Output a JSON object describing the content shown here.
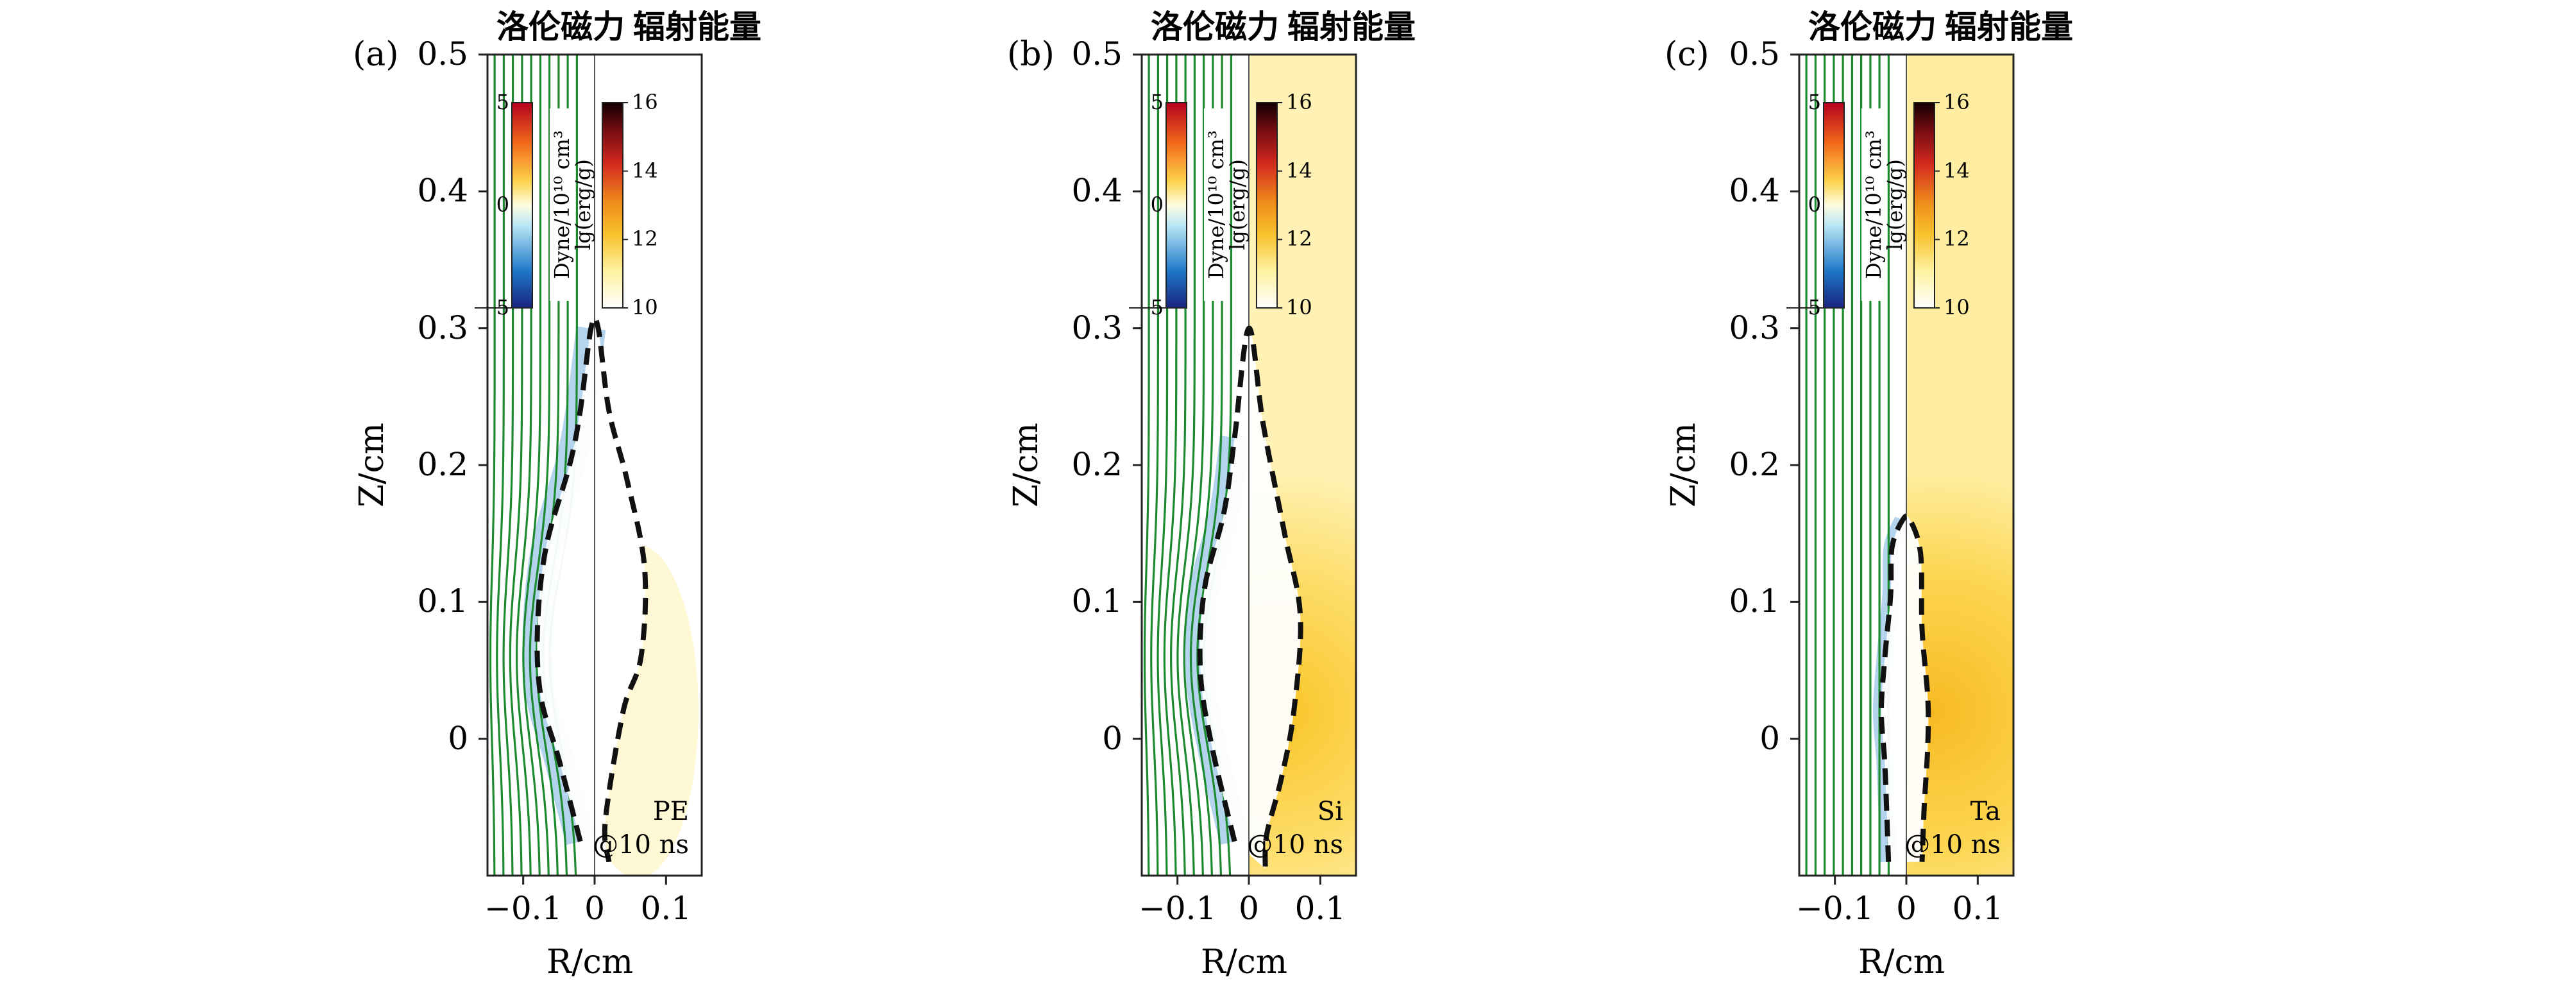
{
  "chart_data": {
    "type": "heatmap",
    "shared": {
      "left_half_title": "洛伦磁力",
      "right_half_title": "辐射能量",
      "xlabel": "R/cm",
      "ylabel": "Z/cm",
      "xlim": [
        -0.15,
        0.15
      ],
      "ylim": [
        -0.1,
        0.5
      ],
      "x_ticks": [
        "−0.1",
        "0",
        "0.1"
      ],
      "y_ticks": [
        "0",
        "0.1",
        "0.2",
        "0.3",
        "0.4",
        "0.5"
      ],
      "lorentz_colorbar": {
        "label": "Dyne/10¹⁰ cm³",
        "min": -5,
        "max": 5,
        "ticks": [
          "5",
          "0",
          "5"
        ],
        "colormap": "RdYlBu_r"
      },
      "energy_colorbar": {
        "label": "lg(erg/g)",
        "min": 10,
        "max": 16,
        "ticks": [
          "16",
          "14",
          "12",
          "10"
        ],
        "colormap": "hot_r"
      },
      "time_label": "@10 ns"
    },
    "panels": [
      {
        "label": "(a)",
        "material": "PE",
        "boundary_points": [
          [
            -0.02,
            -0.075
          ],
          [
            -0.05,
            -0.015
          ],
          [
            -0.075,
            0.03
          ],
          [
            -0.08,
            0.08
          ],
          [
            -0.068,
            0.14
          ],
          [
            -0.035,
            0.2
          ],
          [
            -0.02,
            0.24
          ],
          [
            -0.005,
            0.3
          ],
          [
            0.005,
            0.3
          ],
          [
            0.02,
            0.24
          ],
          [
            0.045,
            0.19
          ],
          [
            0.07,
            0.125
          ],
          [
            0.065,
            0.06
          ],
          [
            0.04,
            0.02
          ],
          [
            0.015,
            -0.06
          ],
          [
            0.02,
            -0.09
          ]
        ],
        "energy_field_level": 10.1
      },
      {
        "label": "(b)",
        "material": "Si",
        "boundary_points": [
          [
            -0.02,
            -0.075
          ],
          [
            -0.052,
            -0.005
          ],
          [
            -0.068,
            0.05
          ],
          [
            -0.062,
            0.11
          ],
          [
            -0.035,
            0.165
          ],
          [
            -0.02,
            0.22
          ],
          [
            0,
            0.3
          ],
          [
            0.02,
            0.23
          ],
          [
            0.05,
            0.15
          ],
          [
            0.072,
            0.09
          ],
          [
            0.063,
            0.02
          ],
          [
            0.045,
            -0.03
          ],
          [
            0.025,
            -0.07
          ],
          [
            0.023,
            -0.095
          ]
        ],
        "energy_field_level": 11.2
      },
      {
        "label": "(c)",
        "material": "Ta",
        "boundary_points": [
          [
            -0.025,
            -0.09
          ],
          [
            -0.03,
            -0.02
          ],
          [
            -0.035,
            0.02
          ],
          [
            -0.03,
            0.06
          ],
          [
            -0.022,
            0.105
          ],
          [
            -0.02,
            0.14
          ],
          [
            -0.005,
            0.16
          ],
          [
            0.005,
            0.16
          ],
          [
            0.02,
            0.135
          ],
          [
            0.022,
            0.08
          ],
          [
            0.03,
            0.03
          ],
          [
            0.03,
            -0.005
          ],
          [
            0.025,
            -0.05
          ],
          [
            0.022,
            -0.09
          ]
        ],
        "energy_field_level": 11.4
      }
    ]
  }
}
